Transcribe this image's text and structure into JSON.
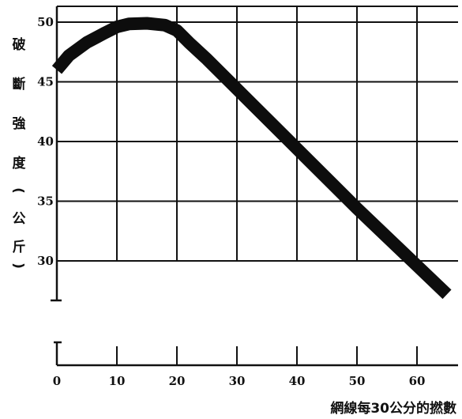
{
  "chart_data": {
    "type": "line",
    "title": "",
    "ylabel": "破斷強度（公斤）",
    "xlabel": "網線每30公分的撚數",
    "xlim": [
      0,
      65
    ],
    "ylim": [
      30,
      50
    ],
    "x_ticks": [
      0,
      10,
      20,
      30,
      40,
      50,
      60
    ],
    "y_ticks": [
      30,
      35,
      40,
      45,
      50
    ],
    "grid": true,
    "y_axis_break": true,
    "series": [
      {
        "x": [
          0,
          2,
          5,
          8,
          10,
          12,
          15,
          18,
          20,
          22,
          25,
          30,
          35,
          40,
          45,
          50,
          55,
          60,
          65
        ],
        "y": [
          46,
          47.2,
          48.3,
          49.1,
          49.6,
          49.85,
          49.9,
          49.75,
          49.3,
          48.3,
          46.9,
          44.4,
          41.9,
          39.4,
          36.9,
          34.4,
          32.0,
          29.6,
          27.2
        ]
      }
    ]
  }
}
